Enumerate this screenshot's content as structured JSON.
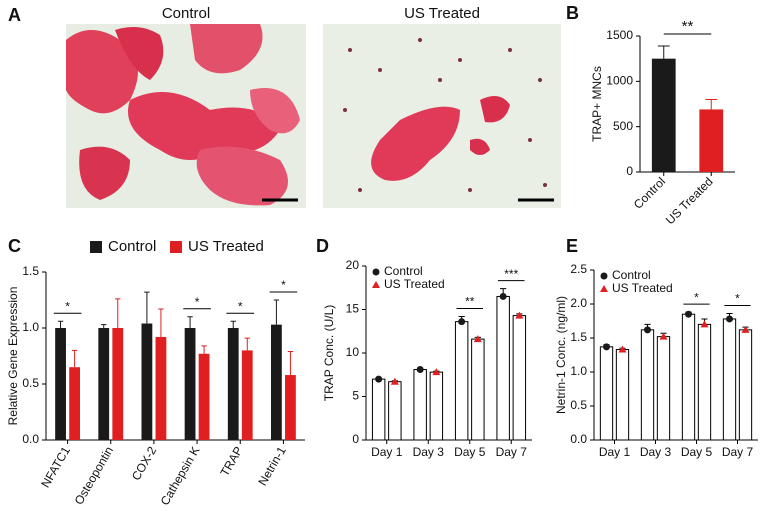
{
  "chart_data": [
    {
      "type": "image",
      "label": "A",
      "captions": [
        "Control",
        "US Treated"
      ]
    },
    {
      "type": "bar",
      "label": "B",
      "ylabel": "TRAP+ MNCs",
      "categories": [
        "Control",
        "US Treated"
      ],
      "values": [
        1250,
        690
      ],
      "errors": [
        140,
        110
      ],
      "colors": [
        "#1a1a1a",
        "#e02020"
      ],
      "bar_style": "filled",
      "annotation": "**",
      "ylim": [
        0,
        1500
      ],
      "yticks": [
        0,
        500,
        1000,
        1500
      ]
    },
    {
      "type": "bar",
      "label": "C",
      "ylabel": "Relative Gene Expression",
      "categories": [
        "NFATC1",
        "Osteopontin",
        "COX-2",
        "Cathepsin K",
        "TRAP",
        "Netrin-1"
      ],
      "series": [
        {
          "name": "Control",
          "color": "#1a1a1a",
          "values": [
            1.0,
            1.0,
            1.04,
            1.0,
            1.0,
            1.03
          ],
          "errors": [
            0.06,
            0.03,
            0.28,
            0.1,
            0.06,
            0.22
          ]
        },
        {
          "name": "US Treated",
          "color": "#e02020",
          "values": [
            0.65,
            1.0,
            0.92,
            0.77,
            0.8,
            0.58
          ],
          "errors": [
            0.15,
            0.26,
            0.25,
            0.07,
            0.11,
            0.21
          ]
        }
      ],
      "significance": [
        "*",
        null,
        null,
        "*",
        "*",
        "*"
      ],
      "bar_style": "filled",
      "legend": "top",
      "ylim": [
        0,
        1.5
      ],
      "yticks": [
        {
          "value": 0,
          "label": "0.0"
        },
        0.5,
        {
          "value": 1,
          "label": "1.0"
        },
        1.5
      ]
    },
    {
      "type": "bar",
      "label": "D",
      "ylabel": "TRAP Conc.   (U/L)",
      "categories": [
        "Day 1",
        "Day 3",
        "Day 5",
        "Day 7"
      ],
      "series": [
        {
          "name": "Control",
          "color": "#1a1a1a",
          "marker": "circle",
          "values": [
            7.0,
            8.1,
            13.6,
            16.5
          ],
          "errors": [
            0.1,
            0.15,
            0.6,
            0.9
          ]
        },
        {
          "name": "US Treated",
          "color": "#e02020",
          "marker": "triangle",
          "values": [
            6.7,
            7.8,
            11.6,
            14.3
          ],
          "errors": [
            0.1,
            0.1,
            0.2,
            0.2
          ]
        }
      ],
      "significance": [
        null,
        null,
        "**",
        "***"
      ],
      "bar_style": "open",
      "legend": "top-left",
      "ylim": [
        0,
        20
      ],
      "yticks": [
        0,
        5,
        10,
        15,
        20
      ]
    },
    {
      "type": "bar",
      "label": "E",
      "ylabel": "Netrin-1 Conc. (ng/ml)",
      "categories": [
        "Day 1",
        "Day 3",
        "Day 5",
        "Day 7"
      ],
      "series": [
        {
          "name": "Control",
          "color": "#1a1a1a",
          "marker": "circle",
          "values": [
            1.37,
            1.62,
            1.85,
            1.78
          ],
          "errors": [
            0.03,
            0.08,
            0.03,
            0.08
          ]
        },
        {
          "name": "US Treated",
          "color": "#e02020",
          "marker": "triangle",
          "values": [
            1.33,
            1.52,
            1.7,
            1.62
          ],
          "errors": [
            0.02,
            0.05,
            0.08,
            0.04
          ]
        }
      ],
      "significance": [
        null,
        null,
        "*",
        "*"
      ],
      "bar_style": "open",
      "legend": "top-left",
      "ylim": [
        0,
        2.5
      ],
      "yticks": [
        {
          "value": 0,
          "label": "0.0"
        },
        0.5,
        {
          "value": 1,
          "label": "1.0"
        },
        1.5,
        {
          "value": 2,
          "label": "2.0"
        },
        2.5
      ]
    }
  ]
}
